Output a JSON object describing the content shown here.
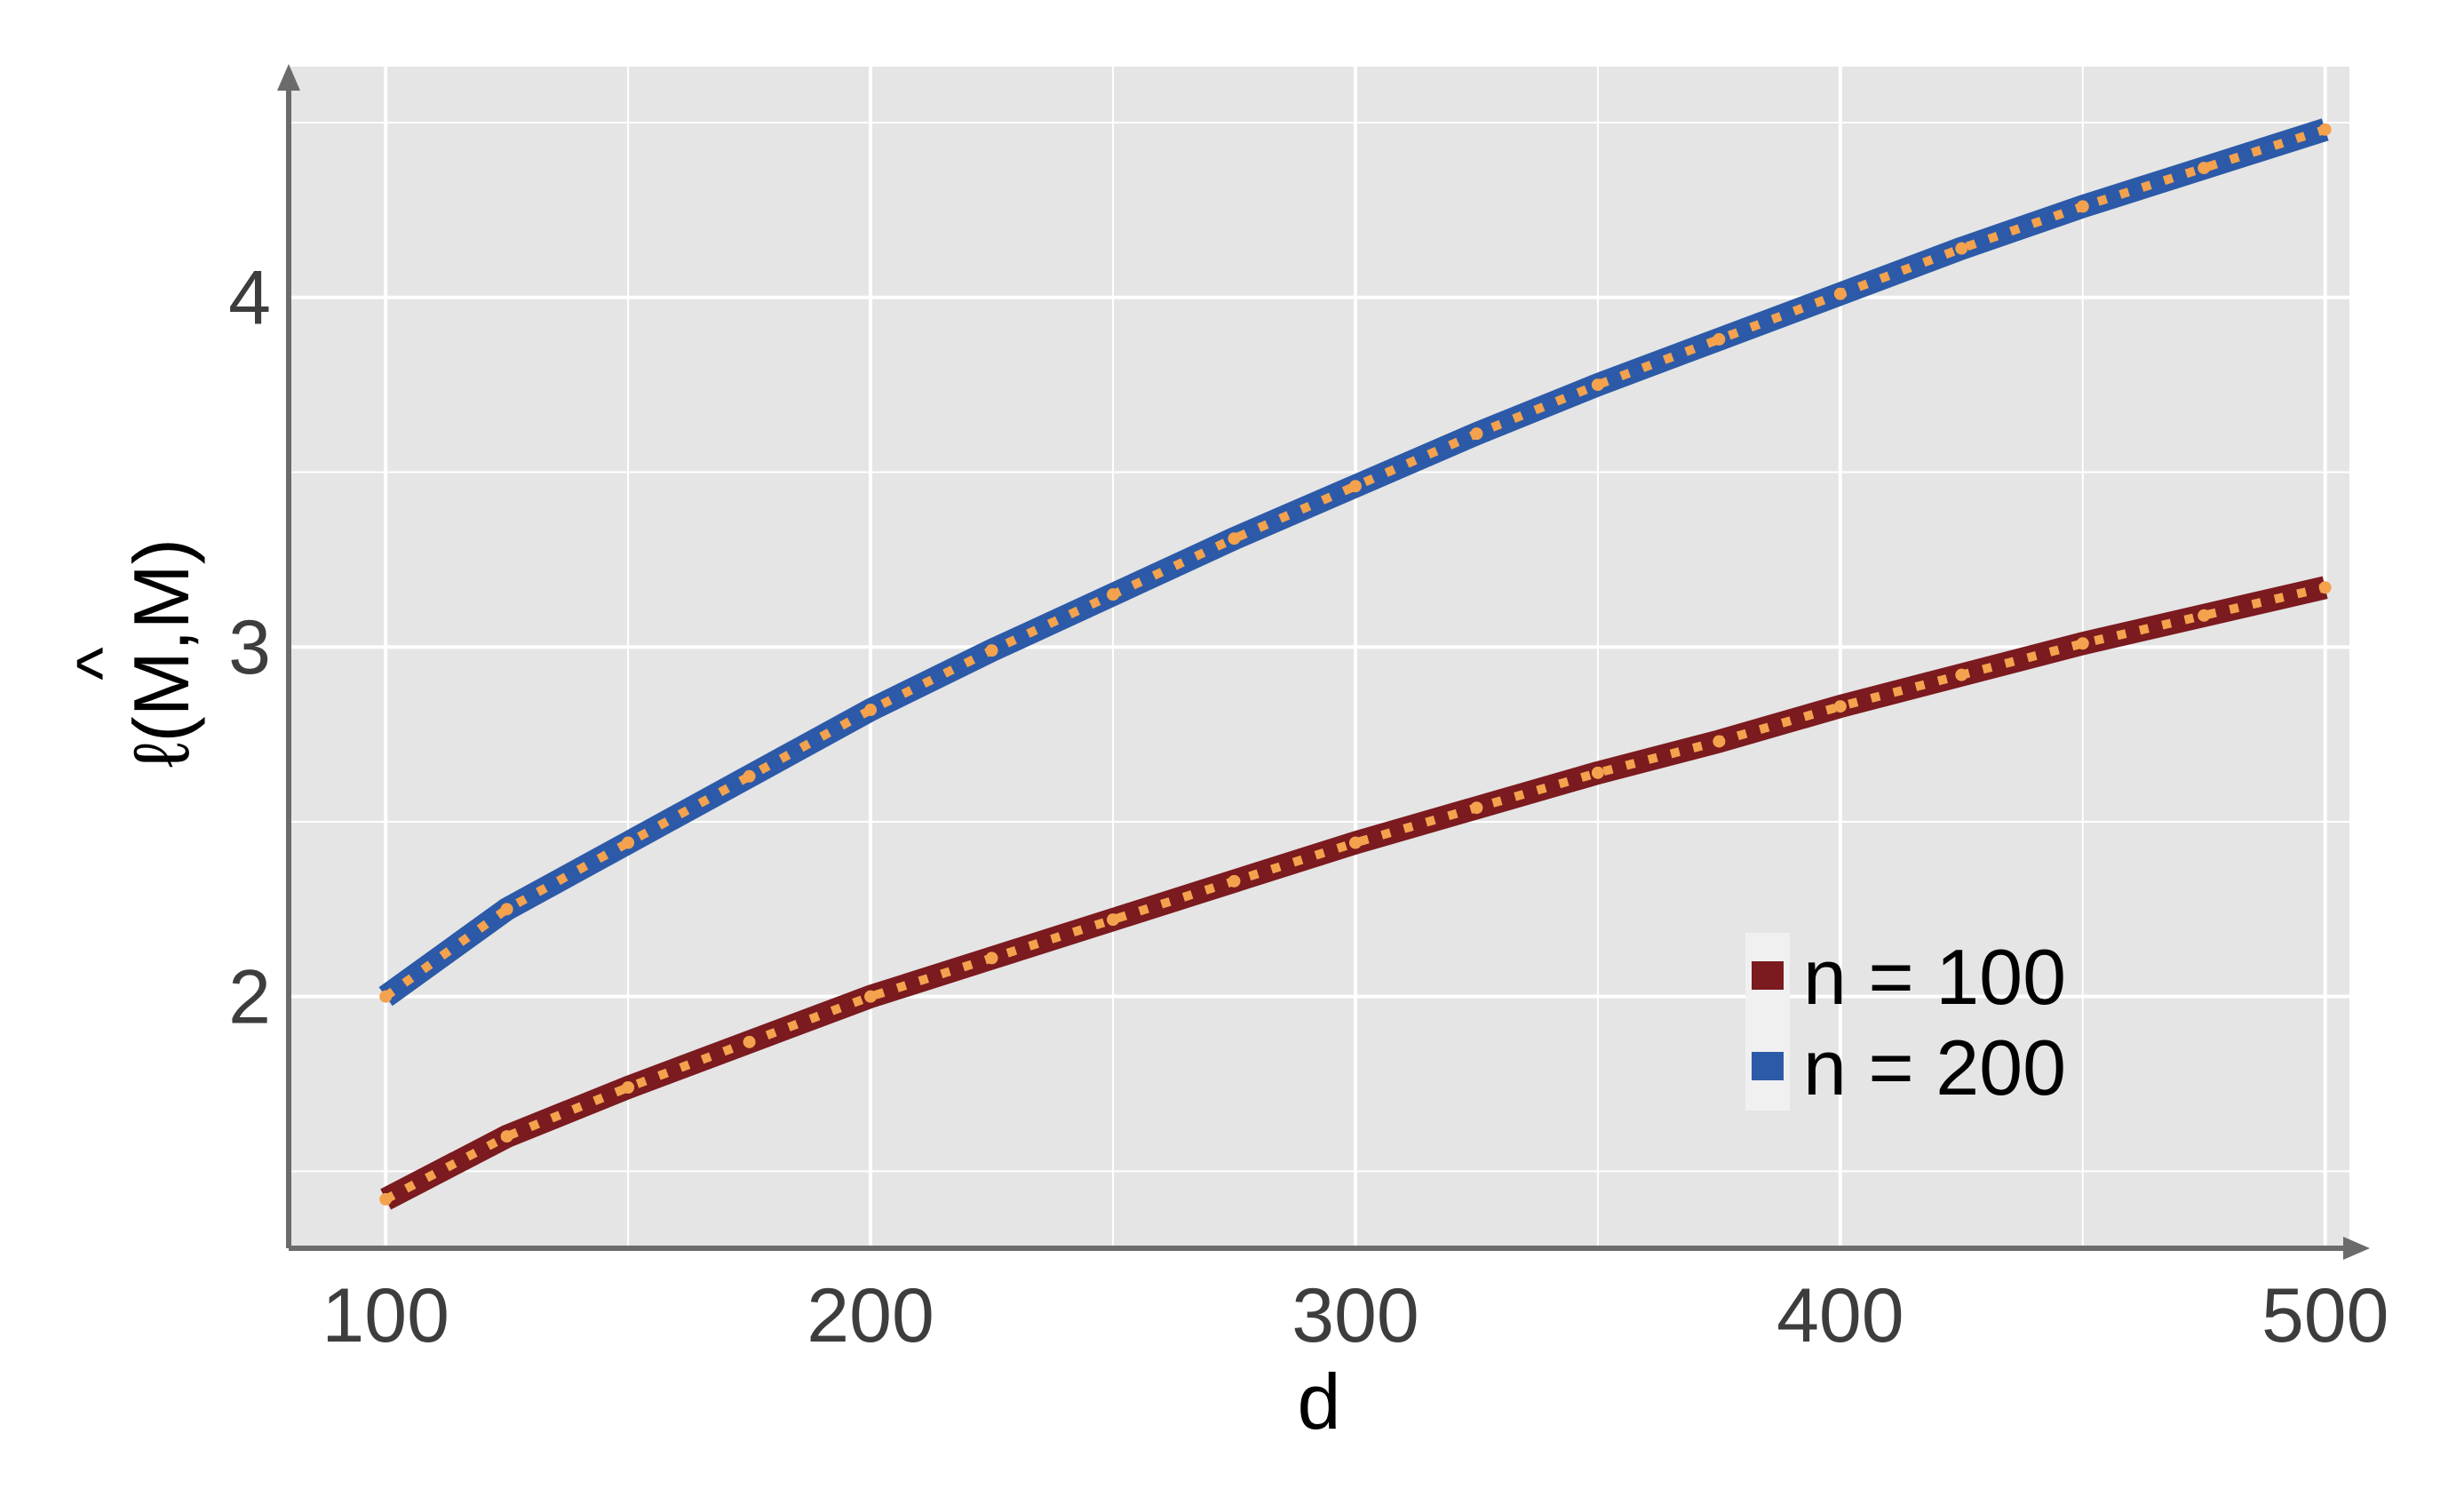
{
  "chart_data": {
    "type": "line",
    "title": "",
    "xlabel": "d",
    "ylabel": "ℓ(M̂,M)",
    "ylabel_parts": {
      "lead": "ℓ(",
      "hat_letter": "M",
      "hat": "^",
      "tail": ",M)"
    },
    "xlim": [
      80,
      505
    ],
    "ylim": [
      1.28,
      4.66
    ],
    "xticks": [
      100,
      200,
      300,
      400,
      500
    ],
    "yticks": [
      2,
      3,
      4
    ],
    "xtick_labels": [
      "100",
      "200",
      "300",
      "400",
      "500"
    ],
    "ytick_labels": [
      "2",
      "3",
      "4"
    ],
    "x_minor_grid": [
      150,
      250,
      350,
      450
    ],
    "y_minor_grid": [
      1.5,
      2.5,
      3.5,
      4.5
    ],
    "grid": true,
    "legend_position": "bottom-right",
    "x": [
      100,
      125,
      150,
      175,
      200,
      225,
      250,
      275,
      300,
      325,
      350,
      375,
      400,
      425,
      450,
      475,
      500
    ],
    "series": [
      {
        "name": "n = 100",
        "color": "#7b1a1f",
        "values": [
          1.42,
          1.6,
          1.74,
          1.87,
          2.0,
          2.11,
          2.22,
          2.33,
          2.44,
          2.54,
          2.64,
          2.73,
          2.83,
          2.92,
          3.01,
          3.09,
          3.17
        ]
      },
      {
        "name": "n = 200",
        "color": "#2c5aa8",
        "values": [
          2.0,
          2.25,
          2.44,
          2.63,
          2.82,
          2.99,
          3.15,
          3.31,
          3.46,
          3.61,
          3.75,
          3.88,
          4.01,
          4.14,
          4.26,
          4.37,
          4.48
        ]
      }
    ],
    "overlay_style": {
      "name": "dotted overlay",
      "color": "#f4a24d"
    },
    "colors": {
      "panel_background": "#e5e5e5",
      "grid": "#ffffff",
      "axis": "#6b6b6b",
      "tick_text": "#3d3d3d",
      "label_text": "#000000"
    }
  }
}
